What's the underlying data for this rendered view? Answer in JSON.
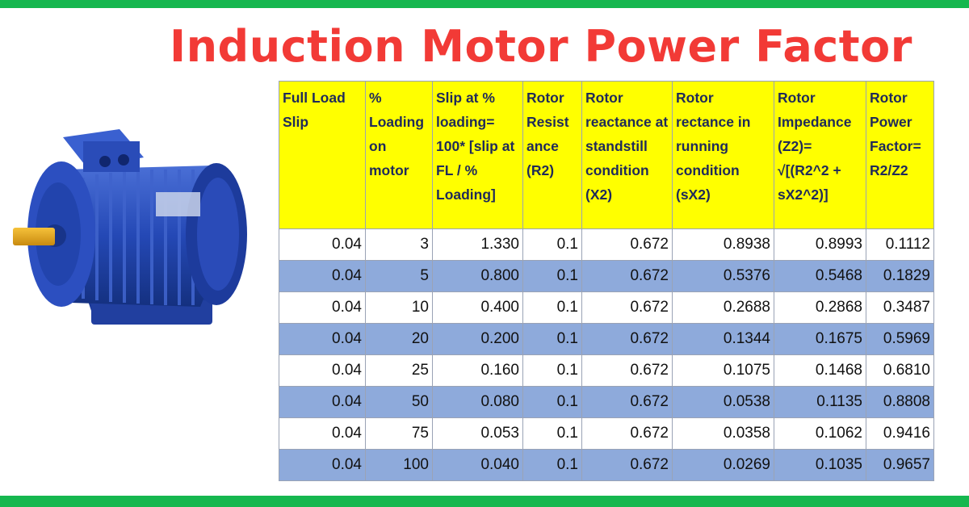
{
  "page": {
    "title": "Induction Motor Power Factor",
    "colors": {
      "band": "#16b74f",
      "title": "#f23a36",
      "header_bg": "#ffff00",
      "alt_row": "#8eaadb"
    }
  },
  "table": {
    "headers": [
      "Full Load Slip",
      "% Loading on motor",
      "Slip at % loading= 100* [slip at FL / % Loading]",
      "Rotor Resist ance (R2)",
      "Rotor reactance at standstill condition (X2)",
      "Rotor rectance in running condition (sX2)",
      "Rotor Impedance (Z2)= √[(R2^2 + sX2^2)]",
      "Rotor Power Factor= R2/Z2"
    ],
    "rows": [
      [
        "0.04",
        "3",
        "1.330",
        "0.1",
        "0.672",
        "0.8938",
        "0.8993",
        "0.1112"
      ],
      [
        "0.04",
        "5",
        "0.800",
        "0.1",
        "0.672",
        "0.5376",
        "0.5468",
        "0.1829"
      ],
      [
        "0.04",
        "10",
        "0.400",
        "0.1",
        "0.672",
        "0.2688",
        "0.2868",
        "0.3487"
      ],
      [
        "0.04",
        "20",
        "0.200",
        "0.1",
        "0.672",
        "0.1344",
        "0.1675",
        "0.5969"
      ],
      [
        "0.04",
        "25",
        "0.160",
        "0.1",
        "0.672",
        "0.1075",
        "0.1468",
        "0.6810"
      ],
      [
        "0.04",
        "50",
        "0.080",
        "0.1",
        "0.672",
        "0.0538",
        "0.1135",
        "0.8808"
      ],
      [
        "0.04",
        "75",
        "0.053",
        "0.1",
        "0.672",
        "0.0358",
        "0.1062",
        "0.9416"
      ],
      [
        "0.04",
        "100",
        "0.040",
        "0.1",
        "0.672",
        "0.0269",
        "0.1035",
        "0.9657"
      ]
    ]
  }
}
